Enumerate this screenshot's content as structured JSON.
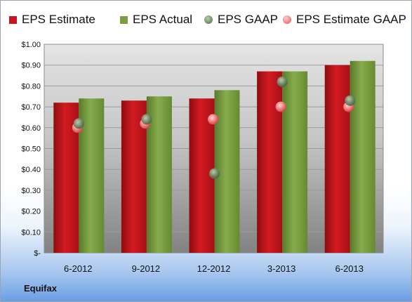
{
  "brand": "Equifax",
  "colors": {
    "estimate": "#c8161d",
    "actual": "#78a040",
    "gaap": "#6e8c66",
    "estimate_gaap": "#f07a7a"
  },
  "chart_data": {
    "type": "bar",
    "title": "",
    "xlabel": "",
    "ylabel": "",
    "categories": [
      "6-2012",
      "9-2012",
      "12-2012",
      "3-2013",
      "6-2013"
    ],
    "ylim": [
      0,
      1.0
    ],
    "yticks": [
      {
        "value": 0,
        "label": "$-"
      },
      {
        "value": 0.1,
        "label": "$0.10"
      },
      {
        "value": 0.2,
        "label": "$0.20"
      },
      {
        "value": 0.3,
        "label": "$0.30"
      },
      {
        "value": 0.4,
        "label": "$0.40"
      },
      {
        "value": 0.5,
        "label": "$0.50"
      },
      {
        "value": 0.6,
        "label": "$0.60"
      },
      {
        "value": 0.7,
        "label": "$0.70"
      },
      {
        "value": 0.8,
        "label": "$0.80"
      },
      {
        "value": 0.9,
        "label": "$0.90"
      },
      {
        "value": 1.0,
        "label": "$1.00"
      }
    ],
    "grid": true,
    "legend": "top",
    "series": [
      {
        "name": "EPS Estimate",
        "kind": "bar",
        "values": [
          0.72,
          0.73,
          0.74,
          0.87,
          0.9
        ]
      },
      {
        "name": "EPS Actual",
        "kind": "bar",
        "values": [
          0.74,
          0.75,
          0.78,
          0.87,
          0.92
        ]
      },
      {
        "name": "EPS GAAP",
        "kind": "marker",
        "values": [
          0.62,
          0.64,
          0.38,
          0.82,
          0.73
        ]
      },
      {
        "name": "EPS Estimate GAAP",
        "kind": "marker",
        "values": [
          0.6,
          0.62,
          0.64,
          0.7,
          0.7
        ]
      }
    ]
  }
}
